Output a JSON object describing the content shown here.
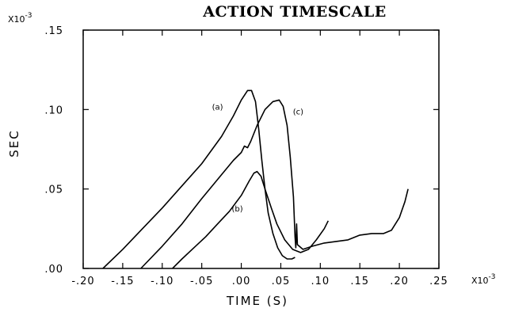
{
  "chart_data": {
    "type": "line",
    "title": "ACTION TIMESCALE",
    "xlabel": "TIME (S)",
    "ylabel": "SEC",
    "xlim": [
      -0.2,
      0.25
    ],
    "ylim": [
      0.0,
      0.15
    ],
    "x_multiplier": "X10",
    "x_multiplier_exp": "-3",
    "y_multiplier": "X10",
    "y_multiplier_exp": "-3",
    "grid": false,
    "legend": "none",
    "xticks": [
      -0.2,
      -0.15,
      -0.1,
      -0.05,
      0.0,
      0.05,
      0.1,
      0.15,
      0.2,
      0.25
    ],
    "xtick_labels": [
      "-.20",
      "-.15",
      "-.10",
      "-.05",
      ".00",
      ".05",
      ".10",
      ".15",
      ".20",
      ".25"
    ],
    "yticks": [
      0.0,
      0.05,
      0.1,
      0.15
    ],
    "ytick_labels": [
      ".00",
      ".05",
      ".10",
      ".15"
    ],
    "series": [
      {
        "label": "(a)",
        "label_at": [
          -0.03,
          0.1
        ],
        "x": [
          -0.175,
          -0.15,
          -0.125,
          -0.1,
          -0.075,
          -0.05,
          -0.025,
          -0.01,
          0.0,
          0.008,
          0.013,
          0.018,
          0.022,
          0.026,
          0.03,
          0.034,
          0.04,
          0.046,
          0.052,
          0.058,
          0.064,
          0.068
        ],
        "y": [
          0.0,
          0.012,
          0.025,
          0.038,
          0.052,
          0.066,
          0.083,
          0.096,
          0.106,
          0.112,
          0.112,
          0.105,
          0.088,
          0.068,
          0.05,
          0.035,
          0.022,
          0.013,
          0.008,
          0.006,
          0.006,
          0.007
        ]
      },
      {
        "label": "(b)",
        "label_at": [
          -0.005,
          0.036
        ],
        "x": [
          -0.087,
          -0.075,
          -0.06,
          -0.045,
          -0.03,
          -0.015,
          0.0,
          0.01,
          0.016,
          0.02,
          0.025,
          0.03,
          0.038,
          0.045,
          0.055,
          0.065,
          0.075,
          0.085,
          0.095,
          0.105,
          0.11
        ],
        "y": [
          0.0,
          0.006,
          0.013,
          0.02,
          0.028,
          0.036,
          0.046,
          0.055,
          0.06,
          0.061,
          0.058,
          0.05,
          0.038,
          0.028,
          0.018,
          0.012,
          0.01,
          0.012,
          0.018,
          0.025,
          0.03
        ]
      },
      {
        "label": "(c)",
        "label_at": [
          0.072,
          0.097
        ],
        "x": [
          -0.127,
          -0.1,
          -0.075,
          -0.05,
          -0.025,
          -0.01,
          0.0,
          0.004,
          0.008,
          0.012,
          0.02,
          0.03,
          0.04,
          0.048,
          0.053,
          0.058,
          0.062,
          0.066,
          0.068,
          0.069,
          0.07,
          0.071,
          0.078,
          0.09,
          0.105,
          0.12,
          0.135,
          0.15,
          0.165,
          0.18,
          0.19,
          0.2,
          0.207,
          0.211
        ],
        "y": [
          0.0,
          0.014,
          0.028,
          0.044,
          0.059,
          0.068,
          0.073,
          0.077,
          0.076,
          0.08,
          0.09,
          0.1,
          0.105,
          0.106,
          0.102,
          0.09,
          0.07,
          0.045,
          0.02,
          0.013,
          0.028,
          0.015,
          0.012,
          0.014,
          0.016,
          0.017,
          0.018,
          0.021,
          0.022,
          0.022,
          0.024,
          0.032,
          0.042,
          0.05
        ]
      }
    ]
  }
}
